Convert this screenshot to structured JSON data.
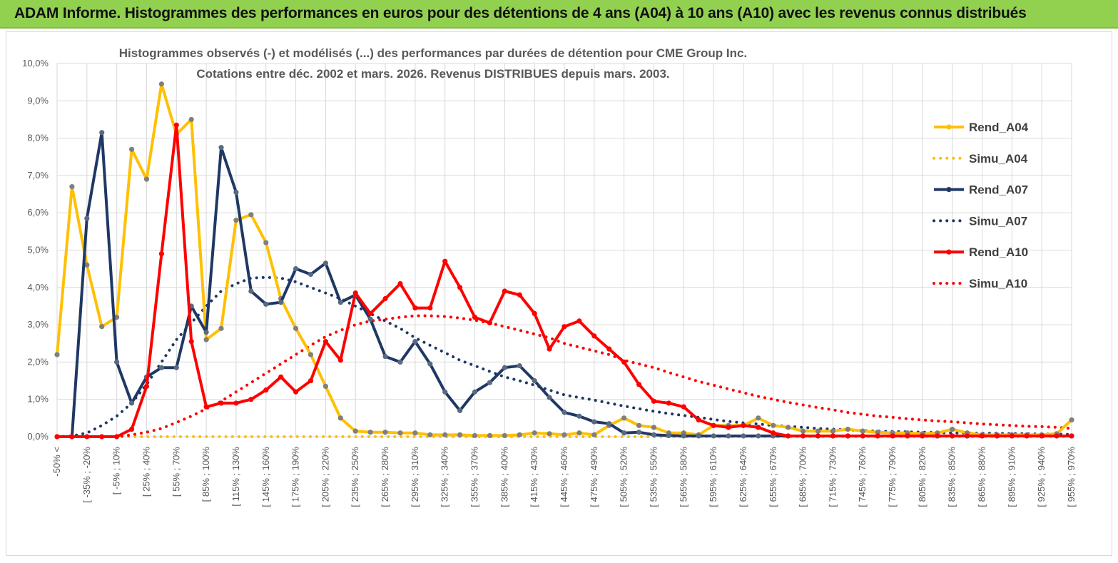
{
  "header": {
    "title": "ADAM Informe. Histogrammes des performances en euros pour des détentions de 4 ans (A04) à 10 ans (A10) avec les revenus connus distribués"
  },
  "colors": {
    "banner": "#92d050",
    "A04": "#ffc000",
    "A07": "#1f3864",
    "A10": "#ff0000",
    "grid": "#d9d9d9",
    "text": "#595959"
  },
  "chart_data": {
    "type": "line",
    "title": [
      "Histogrammes observés (-) et modélisés (...) des performances par durées de détention pour CME Group Inc.",
      "Cotations entre déc. 2002 et mars. 2026. Revenus DISTRIBUES depuis mars. 2003."
    ],
    "xlabel": "",
    "ylabel": "",
    "ylim": [
      0,
      10
    ],
    "y_ticks": [
      "0,0%",
      "1,0%",
      "2,0%",
      "3,0%",
      "4,0%",
      "5,0%",
      "6,0%",
      "7,0%",
      "8,0%",
      "9,0%",
      "10,0%"
    ],
    "x_tick_labels": [
      "-50% <",
      "[ -35% ; -20%",
      "[ -5% ; 10%",
      "[ 25% ; 40%",
      "[ 55% ; 70%",
      "[ 85% ; 100%",
      "[ 115% ; 130%",
      "[ 145% ; 160%",
      "[ 175% ; 190%",
      "[ 205% ; 220%",
      "[ 235% ; 250%",
      "[ 265% ; 280%",
      "[ 295% ; 310%",
      "[ 325% ; 340%",
      "[ 355% ; 370%",
      "[ 385% ; 400%",
      "[ 415% ; 430%",
      "[ 445% ; 460%",
      "[ 475% ; 490%",
      "[ 505% ; 520%",
      "[ 535% ; 550%",
      "[ 565% ; 580%",
      "[ 595% ; 610%",
      "[ 625% ; 640%",
      "[ 655% ; 670%",
      "[ 685% ; 700%",
      "[ 715% ; 730%",
      "[ 745% ; 760%",
      "[ 775% ; 790%",
      "[ 805% ; 820%",
      "[ 835% ; 850%",
      "[ 865% ; 880%",
      "[ 895% ; 910%",
      "[ 925% ; 940%",
      "[ 955% ; 970%"
    ],
    "legend": {
      "position": "right",
      "entries": [
        "Rend_A04",
        "Simu_A04",
        "Rend_A07",
        "Simu_A07",
        "Rend_A10",
        "Simu_A10"
      ]
    },
    "series": [
      {
        "name": "Rend_A04",
        "style": "solid-marker",
        "color": "#ffc000",
        "values": [
          2.2,
          6.7,
          4.6,
          2.95,
          3.2,
          7.7,
          6.9,
          9.45,
          8.1,
          8.5,
          2.6,
          2.9,
          5.8,
          5.95,
          5.2,
          3.7,
          2.9,
          2.2,
          1.35,
          0.5,
          0.15,
          0.12,
          0.12,
          0.1,
          0.1,
          0.05,
          0.05,
          0.05,
          0.03,
          0.03,
          0.03,
          0.05,
          0.1,
          0.08,
          0.05,
          0.1,
          0.05,
          0.3,
          0.5,
          0.3,
          0.25,
          0.1,
          0.1,
          0.05,
          0.3,
          0.3,
          0.3,
          0.5,
          0.3,
          0.25,
          0.15,
          0.15,
          0.15,
          0.2,
          0.15,
          0.12,
          0.1,
          0.1,
          0.08,
          0.1,
          0.2,
          0.1,
          0.05,
          0.05,
          0.05,
          0.05,
          0.05,
          0.08,
          0.45
        ]
      },
      {
        "name": "Simu_A04",
        "style": "dotted",
        "color": "#ffc000",
        "values": [
          0,
          0,
          0,
          0,
          0,
          0,
          0,
          0,
          0,
          0,
          0,
          0,
          0,
          0,
          0,
          0,
          0,
          0,
          0,
          0,
          0,
          0,
          0,
          0,
          0,
          0,
          0,
          0,
          0,
          0,
          0,
          0,
          0,
          0,
          0,
          0,
          0,
          0,
          0,
          0,
          0,
          0,
          0,
          0,
          0,
          0,
          0,
          0,
          0,
          0,
          0,
          0,
          0,
          0,
          0,
          0,
          0,
          0,
          0,
          0,
          0,
          0,
          0,
          0,
          0,
          0,
          0,
          0,
          0
        ]
      },
      {
        "name": "Rend_A07",
        "style": "solid-marker",
        "color": "#1f3864",
        "values": [
          0.0,
          0.0,
          5.85,
          8.15,
          2.0,
          0.9,
          1.6,
          1.85,
          1.85,
          3.5,
          2.8,
          7.75,
          6.55,
          3.9,
          3.55,
          3.6,
          4.5,
          4.35,
          4.65,
          3.6,
          3.8,
          3.15,
          2.15,
          2.0,
          2.55,
          1.95,
          1.2,
          0.7,
          1.2,
          1.45,
          1.85,
          1.9,
          1.5,
          1.05,
          0.65,
          0.55,
          0.4,
          0.35,
          0.1,
          0.12,
          0.05,
          0.03,
          0.02,
          0.02,
          0.02,
          0.02,
          0.02,
          0.02,
          0.02,
          0.02,
          0.02,
          0.02,
          0.02,
          0.02,
          0.02,
          0.02,
          0.02,
          0.02,
          0.02,
          0.02,
          0.02,
          0.02,
          0.02,
          0.02,
          0.02,
          0.02,
          0.02,
          0.02,
          0.02
        ]
      },
      {
        "name": "Simu_A07",
        "style": "dotted",
        "color": "#1f3864",
        "values": [
          0.0,
          0.02,
          0.1,
          0.3,
          0.55,
          0.9,
          1.4,
          2.0,
          2.6,
          3.05,
          3.5,
          3.9,
          4.1,
          4.25,
          4.27,
          4.25,
          4.15,
          4.0,
          3.85,
          3.7,
          3.5,
          3.3,
          3.1,
          2.9,
          2.65,
          2.45,
          2.25,
          2.05,
          1.9,
          1.75,
          1.6,
          1.5,
          1.38,
          1.25,
          1.12,
          1.05,
          0.98,
          0.9,
          0.82,
          0.75,
          0.68,
          0.62,
          0.57,
          0.52,
          0.46,
          0.41,
          0.37,
          0.34,
          0.3,
          0.28,
          0.25,
          0.22,
          0.2,
          0.18,
          0.16,
          0.15,
          0.14,
          0.13,
          0.12,
          0.11,
          0.1,
          0.1,
          0.09,
          0.09,
          0.08,
          0.08,
          0.07,
          0.07,
          0.06
        ]
      },
      {
        "name": "Rend_A10",
        "style": "solid-marker",
        "color": "#ff0000",
        "values": [
          0.0,
          0.0,
          0.0,
          0.0,
          0.0,
          0.2,
          1.35,
          4.9,
          8.35,
          2.55,
          0.8,
          0.9,
          0.9,
          1.0,
          1.25,
          1.6,
          1.2,
          1.5,
          2.55,
          2.05,
          3.85,
          3.3,
          3.7,
          4.1,
          3.45,
          3.45,
          4.7,
          4.0,
          3.2,
          3.05,
          3.9,
          3.8,
          3.3,
          2.35,
          2.95,
          3.1,
          2.7,
          2.35,
          2.0,
          1.4,
          0.95,
          0.9,
          0.8,
          0.45,
          0.3,
          0.25,
          0.3,
          0.25,
          0.1,
          0.02,
          0.02,
          0.02,
          0.02,
          0.02,
          0.02,
          0.02,
          0.02,
          0.02,
          0.02,
          0.02,
          0.02,
          0.02,
          0.02,
          0.02,
          0.02,
          0.02,
          0.02,
          0.02,
          0.02
        ]
      },
      {
        "name": "Simu_A10",
        "style": "dotted",
        "color": "#ff0000",
        "values": [
          0.0,
          0.0,
          0.0,
          0.0,
          0.0,
          0.05,
          0.12,
          0.22,
          0.38,
          0.55,
          0.75,
          0.95,
          1.2,
          1.45,
          1.7,
          1.95,
          2.2,
          2.45,
          2.68,
          2.85,
          3.0,
          3.1,
          3.15,
          3.2,
          3.24,
          3.24,
          3.22,
          3.18,
          3.12,
          3.05,
          2.95,
          2.85,
          2.75,
          2.65,
          2.5,
          2.4,
          2.3,
          2.2,
          2.05,
          1.95,
          1.85,
          1.72,
          1.6,
          1.48,
          1.38,
          1.28,
          1.18,
          1.08,
          1.0,
          0.92,
          0.85,
          0.78,
          0.72,
          0.65,
          0.6,
          0.55,
          0.52,
          0.48,
          0.45,
          0.42,
          0.4,
          0.37,
          0.34,
          0.32,
          0.3,
          0.28,
          0.27,
          0.25,
          0.22
        ]
      }
    ]
  }
}
